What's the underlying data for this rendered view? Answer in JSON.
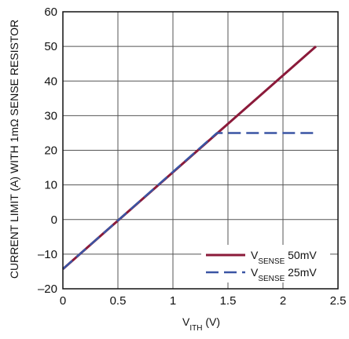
{
  "chart_data": {
    "type": "line",
    "xlabel": {
      "main": "V",
      "sub": "ITH",
      "suffix": " (V)"
    },
    "ylabel": "CURRENT LIMIT (A) WITH 1mΩ SENSE RESISTOR",
    "xlim": [
      0,
      2.5
    ],
    "ylim": [
      -20,
      60
    ],
    "xticks": [
      0,
      0.5,
      1,
      1.5,
      2,
      2.5
    ],
    "xtick_labels": [
      "0",
      "0.5",
      "1",
      "1.5",
      "2",
      "2.5"
    ],
    "yticks": [
      -20,
      -10,
      0,
      10,
      20,
      30,
      40,
      50,
      60
    ],
    "ytick_labels": [
      "–20",
      "–10",
      "0",
      "10",
      "20",
      "30",
      "40",
      "50",
      "60"
    ],
    "grid": true,
    "legend_position": "bottom-right",
    "series": [
      {
        "label_main": "V",
        "label_sub": "SENSE",
        "label_suffix": " 50mV",
        "color": "#8b1a3a",
        "dash": "solid",
        "x": [
          0,
          2.3
        ],
        "y": [
          -14.3,
          50
        ]
      },
      {
        "label_main": "V",
        "label_sub": "SENSE",
        "label_suffix": " 25mV",
        "color": "#3a55a4",
        "dash": "dashed",
        "x": [
          0,
          1.4,
          1.5,
          2.3
        ],
        "y": [
          -14.3,
          25,
          25,
          25
        ]
      }
    ]
  }
}
